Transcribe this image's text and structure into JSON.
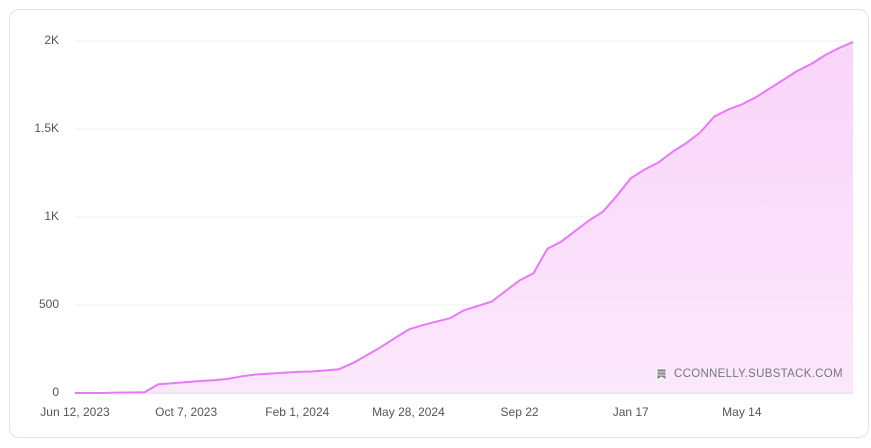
{
  "chart_data": {
    "type": "area",
    "categories": [
      "Jun 12, 2023",
      null,
      null,
      null,
      null,
      null,
      null,
      null,
      "Oct 7, 2023",
      null,
      null,
      null,
      null,
      null,
      null,
      null,
      "Feb 1, 2024",
      null,
      null,
      null,
      null,
      null,
      null,
      null,
      "May 28, 2024",
      null,
      null,
      null,
      null,
      null,
      null,
      null,
      "Sep 22",
      null,
      null,
      null,
      null,
      null,
      null,
      null,
      "Jan 17",
      null,
      null,
      null,
      null,
      null,
      null,
      null,
      "May 14",
      null,
      null,
      null,
      null,
      null,
      null,
      null,
      null
    ],
    "values": [
      0,
      0,
      0,
      2,
      3,
      4,
      50,
      55,
      62,
      68,
      72,
      80,
      95,
      105,
      110,
      115,
      120,
      122,
      128,
      135,
      170,
      215,
      260,
      310,
      360,
      385,
      405,
      425,
      470,
      495,
      520,
      580,
      640,
      680,
      820,
      860,
      920,
      980,
      1030,
      1120,
      1220,
      1270,
      1310,
      1370,
      1420,
      1480,
      1570,
      1610,
      1640,
      1680,
      1730,
      1780,
      1830,
      1870,
      1920,
      1960,
      1995
    ],
    "color": "#e879f9",
    "ylim": [
      0,
      2000
    ],
    "yticks": [
      0,
      500,
      {
        "value": 1000,
        "label": "1K"
      },
      {
        "value": 1500,
        "label": "1.5K"
      },
      {
        "value": 2000,
        "label": "2K"
      }
    ],
    "grid": true,
    "watermark": "CCONNELLY.SUBSTACK.COM"
  }
}
